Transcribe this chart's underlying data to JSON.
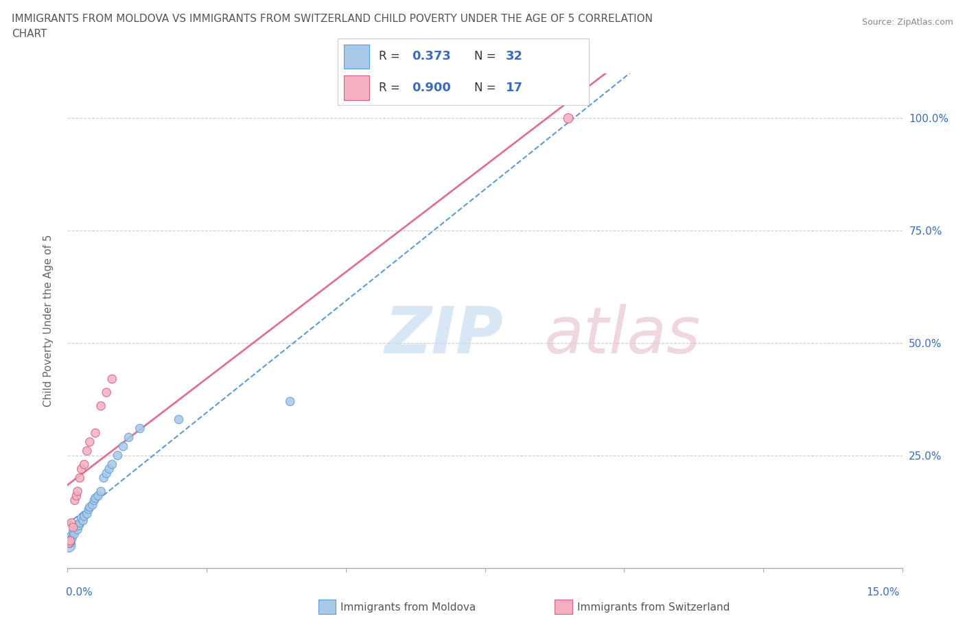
{
  "title_line1": "IMMIGRANTS FROM MOLDOVA VS IMMIGRANTS FROM SWITZERLAND CHILD POVERTY UNDER THE AGE OF 5 CORRELATION",
  "title_line2": "CHART",
  "source": "Source: ZipAtlas.com",
  "ylabel": "Child Poverty Under the Age of 5",
  "x_min": 0.0,
  "x_max": 0.15,
  "y_min": 0.0,
  "y_max": 1.1,
  "moldova_color": "#a8c8e8",
  "moldova_edge": "#5b9bd5",
  "switzerland_color": "#f4b0c0",
  "switzerland_edge": "#d06080",
  "moldova_R": 0.373,
  "moldova_N": 32,
  "switzerland_R": 0.9,
  "switzerland_N": 17,
  "grid_color": "#cccccc",
  "background_color": "#ffffff",
  "moldova_line_color": "#5b9bd5",
  "switzerland_line_color": "#e07090",
  "moldova_scatter_x": [
    0.0002,
    0.0003,
    0.0005,
    0.0006,
    0.0008,
    0.001,
    0.0012,
    0.0015,
    0.0018,
    0.002,
    0.0022,
    0.0025,
    0.0028,
    0.003,
    0.0035,
    0.0038,
    0.004,
    0.0045,
    0.0048,
    0.005,
    0.0055,
    0.006,
    0.0065,
    0.007,
    0.0075,
    0.008,
    0.009,
    0.01,
    0.011,
    0.013,
    0.02,
    0.04
  ],
  "moldova_scatter_y": [
    0.05,
    0.06,
    0.055,
    0.07,
    0.065,
    0.08,
    0.075,
    0.09,
    0.085,
    0.095,
    0.1,
    0.11,
    0.105,
    0.115,
    0.12,
    0.13,
    0.135,
    0.14,
    0.15,
    0.155,
    0.16,
    0.17,
    0.2,
    0.21,
    0.22,
    0.23,
    0.25,
    0.27,
    0.29,
    0.31,
    0.33,
    0.37
  ],
  "moldova_sizes": [
    200,
    80,
    80,
    80,
    80,
    80,
    80,
    80,
    80,
    100,
    80,
    80,
    80,
    80,
    80,
    80,
    80,
    80,
    80,
    80,
    80,
    80,
    80,
    80,
    80,
    80,
    80,
    80,
    80,
    80,
    80,
    80
  ],
  "switzerland_scatter_x": [
    0.0003,
    0.0005,
    0.0007,
    0.001,
    0.0013,
    0.0016,
    0.0018,
    0.0022,
    0.0025,
    0.003,
    0.0035,
    0.004,
    0.005,
    0.006,
    0.007,
    0.008,
    0.09
  ],
  "switzerland_scatter_y": [
    0.055,
    0.06,
    0.1,
    0.09,
    0.15,
    0.16,
    0.17,
    0.2,
    0.22,
    0.23,
    0.26,
    0.28,
    0.3,
    0.36,
    0.39,
    0.42,
    1.0
  ],
  "switzerland_sizes": [
    80,
    80,
    80,
    80,
    80,
    80,
    80,
    80,
    80,
    80,
    80,
    80,
    80,
    80,
    80,
    80,
    100
  ]
}
